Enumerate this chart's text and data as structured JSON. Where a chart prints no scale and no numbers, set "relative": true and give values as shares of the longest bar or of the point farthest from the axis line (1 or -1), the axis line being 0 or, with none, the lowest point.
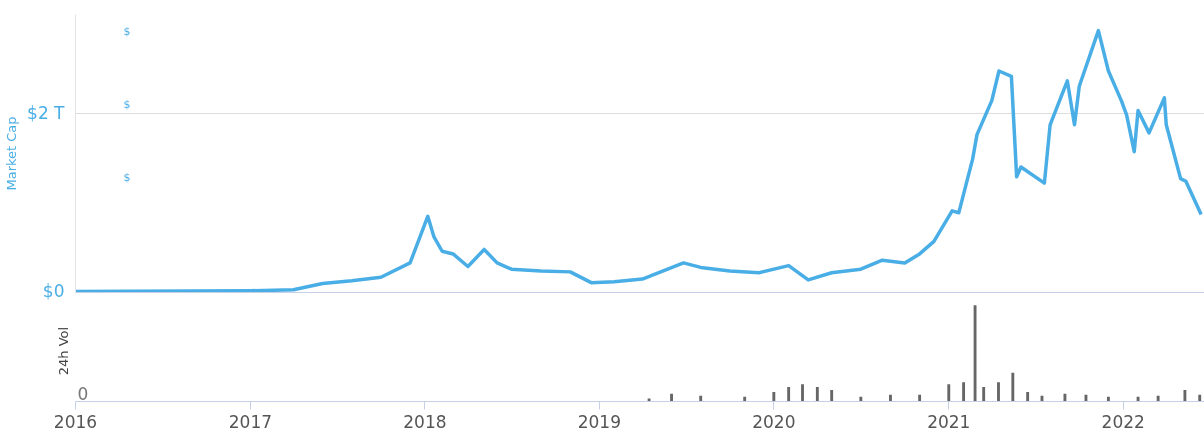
{
  "chart_data": [
    {
      "type": "line",
      "ylabel": "Market Cap",
      "annotations": [
        "$",
        "$",
        "$"
      ],
      "x": [
        "2016-01-01",
        "2017-01-01",
        "2017-04-01",
        "2017-06-01",
        "2017-08-01",
        "2017-10-01",
        "2017-12-01",
        "2018-01-07",
        "2018-01-20",
        "2018-02-06",
        "2018-03-01",
        "2018-04-01",
        "2018-05-05",
        "2018-06-01",
        "2018-07-01",
        "2018-09-01",
        "2018-11-01",
        "2018-12-15",
        "2019-02-01",
        "2019-04-01",
        "2019-06-26",
        "2019-08-01",
        "2019-10-01",
        "2019-12-01",
        "2020-02-01",
        "2020-03-13",
        "2020-05-01",
        "2020-07-01",
        "2020-08-15",
        "2020-10-01",
        "2020-11-01",
        "2020-12-01",
        "2021-01-08",
        "2021-01-22",
        "2021-02-20",
        "2021-03-01",
        "2021-04-01",
        "2021-04-16",
        "2021-05-12",
        "2021-05-23",
        "2021-06-01",
        "2021-07-20",
        "2021-08-01",
        "2021-09-06",
        "2021-09-21",
        "2021-10-01",
        "2021-11-10",
        "2021-12-01",
        "2021-12-28",
        "2022-01-08",
        "2022-01-24",
        "2022-02-01",
        "2022-02-24",
        "2022-03-28",
        "2022-04-01",
        "2022-05-01",
        "2022-05-12",
        "2022-06-13"
      ],
      "series": [
        {
          "color": "#4aaee6",
          "values": [
            0.01,
            0.02,
            0.03,
            0.1,
            0.13,
            0.17,
            0.33,
            0.85,
            0.62,
            0.46,
            0.43,
            0.29,
            0.48,
            0.33,
            0.26,
            0.24,
            0.23,
            0.11,
            0.12,
            0.15,
            0.33,
            0.28,
            0.24,
            0.22,
            0.3,
            0.14,
            0.22,
            0.26,
            0.36,
            0.33,
            0.43,
            0.57,
            0.91,
            0.89,
            1.49,
            1.76,
            2.14,
            2.47,
            2.41,
            1.29,
            1.4,
            1.22,
            1.87,
            2.36,
            1.87,
            2.3,
            2.92,
            2.47,
            2.14,
            1.98,
            1.57,
            2.03,
            1.78,
            2.17,
            1.87,
            1.27,
            1.24,
            0.87
          ]
        }
      ],
      "xlim": [
        "2016-01-01",
        "2022-06-20"
      ],
      "xticks": [
        {
          "value": "2016",
          "label": null
        },
        {
          "value": "2017",
          "label": null
        },
        {
          "value": "2018",
          "label": null
        },
        {
          "value": "2019",
          "label": null
        },
        {
          "value": "2020",
          "label": null
        },
        {
          "value": "2021",
          "label": null
        },
        {
          "value": "2022",
          "label": null
        }
      ],
      "ylim": [
        0,
        3.1
      ],
      "yticks": [
        {
          "value": 0,
          "label": "$0"
        },
        {
          "value": 2,
          "label": "$2 T"
        }
      ],
      "grid": "y",
      "tick_labels": "y"
    },
    {
      "type": "bar",
      "relative": true,
      "ylabel": "24h Vol",
      "annotations": [
        "0"
      ],
      "x": [
        "2019-04-15",
        "2019-06-01",
        "2019-08-01",
        "2019-11-01",
        "2020-01-01",
        "2020-02-01",
        "2020-03-01",
        "2020-04-01",
        "2020-05-01",
        "2020-07-01",
        "2020-09-01",
        "2020-11-01",
        "2021-01-01",
        "2021-02-01",
        "2021-02-25",
        "2021-03-15",
        "2021-04-15",
        "2021-05-15",
        "2021-06-15",
        "2021-07-15",
        "2021-09-01",
        "2021-10-15",
        "2021-12-01",
        "2022-02-01",
        "2022-03-15",
        "2022-05-10",
        "2022-06-10"
      ],
      "series": [
        {
          "color": "#666666",
          "values": [
            0.03,
            0.08,
            0.06,
            0.05,
            0.1,
            0.15,
            0.18,
            0.15,
            0.12,
            0.05,
            0.07,
            0.07,
            0.18,
            0.2,
            1,
            0.15,
            0.2,
            0.3,
            0.1,
            0.06,
            0.08,
            0.07,
            0.05,
            0.05,
            0.06,
            0.12,
            0.07
          ]
        }
      ],
      "xlim": [
        "2016-01-01",
        "2022-06-20"
      ],
      "xticks": [
        "2016",
        "2017",
        "2018",
        "2019",
        "2020",
        "2021",
        "2022"
      ],
      "grid": false
    }
  ]
}
